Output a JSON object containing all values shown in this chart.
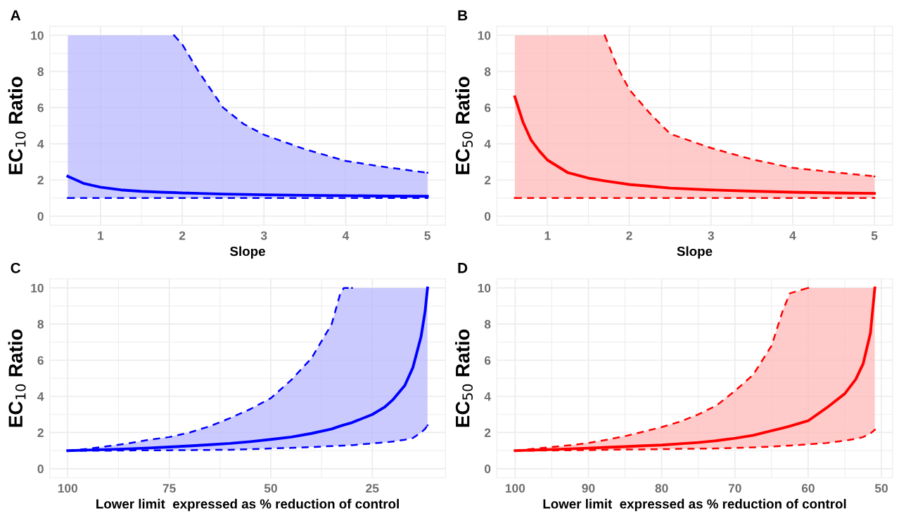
{
  "chart_data": [
    {
      "type": "line",
      "title": "A",
      "xlabel": "Slope",
      "ylabel": "EC$_{10}$ Ratio",
      "xlim": [
        0.38,
        5.22
      ],
      "xticks": [
        1,
        2,
        3,
        4,
        5
      ],
      "ylim": [
        -0.5,
        10.5
      ],
      "yticks": [
        0,
        2,
        4,
        6,
        8,
        10
      ],
      "grid": true,
      "marker": "none",
      "line_style": "solid",
      "x": [
        0.6,
        0.7,
        0.8,
        1,
        1.25,
        1.5,
        1.75,
        1.9,
        2,
        2.2,
        2.5,
        2.75,
        3,
        3.5,
        4,
        4.5,
        5
      ],
      "series": [
        {
          "color": "#0000ff",
          "values": [
            2.2,
            2.0,
            1.8,
            1.6,
            1.45,
            1.37,
            1.32,
            1.3,
            1.28,
            1.26,
            1.22,
            1.2,
            1.18,
            1.15,
            1.13,
            1.11,
            1.1
          ],
          "lower": [
            1,
            1,
            1,
            1,
            1,
            1,
            1,
            1,
            1,
            1,
            1,
            1,
            1,
            1,
            1,
            1,
            1
          ],
          "upper": [
            10,
            10,
            10,
            10,
            10,
            10,
            10,
            10,
            9.5,
            8.0,
            6.0,
            5.1,
            4.5,
            3.7,
            3.05,
            2.7,
            2.4
          ]
        },
        {
          "color": "#0000ff",
          "line_style": "dashed",
          "values": [
            1,
            1,
            1,
            1,
            1,
            1,
            1,
            1,
            1,
            1,
            1,
            1,
            1,
            1,
            1,
            1,
            1
          ]
        },
        {
          "color": "#0000ff",
          "line_style": "dashed",
          "values": [
            null,
            null,
            null,
            null,
            null,
            null,
            null,
            10,
            9.5,
            8.0,
            6.0,
            5.1,
            4.5,
            3.7,
            3.05,
            2.7,
            2.4
          ]
        }
      ]
    },
    {
      "type": "line",
      "title": "B",
      "xlabel": "Slope",
      "ylabel": "EC$_{50}$ Ratio",
      "xlim": [
        0.38,
        5.22
      ],
      "xticks": [
        1,
        2,
        3,
        4,
        5
      ],
      "ylim": [
        -0.5,
        10.5
      ],
      "yticks": [
        0,
        2,
        4,
        6,
        8,
        10
      ],
      "grid": true,
      "marker": "none",
      "line_style": "solid",
      "x": [
        0.6,
        0.7,
        0.8,
        0.9,
        1,
        1.25,
        1.5,
        1.7,
        1.85,
        2,
        2.25,
        2.5,
        3,
        3.5,
        4,
        4.5,
        5
      ],
      "series": [
        {
          "color": "#ff0000",
          "values": [
            6.6,
            5.2,
            4.2,
            3.6,
            3.1,
            2.4,
            2.1,
            1.95,
            1.85,
            1.75,
            1.65,
            1.55,
            1.45,
            1.38,
            1.32,
            1.28,
            1.26
          ],
          "lower": [
            1,
            1,
            1,
            1,
            1,
            1,
            1,
            1,
            1,
            1,
            1,
            1,
            1,
            1,
            1,
            1,
            1
          ],
          "upper": [
            10,
            10,
            10,
            10,
            10,
            10,
            10,
            10,
            8.3,
            7.0,
            5.7,
            4.55,
            3.77,
            3.14,
            2.67,
            2.43,
            2.2
          ]
        },
        {
          "color": "#ff0000",
          "line_style": "dashed",
          "values": [
            1,
            1,
            1,
            1,
            1,
            1,
            1,
            1,
            1,
            1,
            1,
            1,
            1,
            1,
            1,
            1,
            1
          ]
        },
        {
          "color": "#ff0000",
          "line_style": "dashed",
          "values": [
            null,
            null,
            null,
            null,
            null,
            null,
            null,
            10,
            8.3,
            7.0,
            5.7,
            4.55,
            3.77,
            3.14,
            2.67,
            2.43,
            2.2
          ]
        }
      ]
    },
    {
      "type": "line",
      "title": "C",
      "xlabel": "Lower limit  expressed as % reduction of control",
      "ylabel": "EC$_{10}$ Ratio",
      "xlim": [
        104.4,
        7.0
      ],
      "xticks": [
        100,
        75,
        50,
        25
      ],
      "ylim": [
        -0.5,
        10.5
      ],
      "yticks": [
        0,
        2,
        4,
        6,
        8,
        10
      ],
      "grid": true,
      "marker": "none",
      "line_style": "solid",
      "x": [
        100,
        95,
        90,
        85,
        80,
        75,
        70,
        65,
        60,
        55,
        50,
        45,
        40,
        35,
        33,
        32,
        30,
        25,
        22,
        20,
        17,
        15,
        13,
        12,
        11.4
      ],
      "series": [
        {
          "color": "#0000ff",
          "values": [
            1.0,
            1.03,
            1.06,
            1.1,
            1.15,
            1.2,
            1.26,
            1.33,
            1.4,
            1.5,
            1.62,
            1.75,
            1.95,
            2.2,
            2.35,
            2.42,
            2.55,
            3.0,
            3.4,
            3.8,
            4.6,
            5.6,
            7.3,
            8.7,
            10
          ],
          "lower": [
            1.0,
            1.0,
            1.0,
            1.01,
            1.02,
            1.02,
            1.03,
            1.04,
            1.05,
            1.08,
            1.12,
            1.15,
            1.2,
            1.25,
            1.27,
            1.28,
            1.3,
            1.4,
            1.45,
            1.5,
            1.6,
            1.7,
            2.0,
            2.2,
            2.4
          ],
          "upper": [
            1.0,
            1.1,
            1.25,
            1.4,
            1.6,
            1.75,
            2.0,
            2.35,
            2.8,
            3.3,
            3.9,
            4.9,
            6.1,
            8.0,
            9.6,
            10,
            10,
            10,
            10,
            10,
            10,
            10,
            10,
            10,
            10
          ]
        },
        {
          "color": "#0000ff",
          "line_style": "dashed",
          "values": [
            1.0,
            1.0,
            1.0,
            1.01,
            1.02,
            1.02,
            1.03,
            1.04,
            1.05,
            1.08,
            1.12,
            1.15,
            1.2,
            1.25,
            1.27,
            1.28,
            1.3,
            1.4,
            1.45,
            1.5,
            1.6,
            1.7,
            2.0,
            2.2,
            2.4
          ]
        },
        {
          "color": "#0000ff",
          "line_style": "dashed",
          "values": [
            1.0,
            1.1,
            1.25,
            1.4,
            1.6,
            1.75,
            2.0,
            2.35,
            2.8,
            3.3,
            3.9,
            4.9,
            6.1,
            8.0,
            9.6,
            10,
            10,
            null,
            null,
            null,
            null,
            null,
            null,
            null,
            null
          ]
        }
      ]
    },
    {
      "type": "line",
      "title": "D",
      "xlabel": "Lower limit  expressed as % reduction of control",
      "ylabel": "EC$_{50}$ Ratio",
      "xlim": [
        102.5,
        48.5
      ],
      "xticks": [
        100,
        90,
        80,
        70,
        60,
        50
      ],
      "ylim": [
        -0.5,
        10.5
      ],
      "yticks": [
        0,
        2,
        4,
        6,
        8,
        10
      ],
      "grid": true,
      "marker": "none",
      "line_style": "solid",
      "x": [
        100,
        97.5,
        95,
        92.5,
        90,
        87.5,
        85,
        82.5,
        80,
        77.5,
        75,
        72.5,
        70,
        67.5,
        65,
        63.5,
        62.5,
        60,
        57.5,
        55,
        53.5,
        52.5,
        51.5,
        50.9
      ],
      "series": [
        {
          "color": "#ff0000",
          "values": [
            1.0,
            1.03,
            1.06,
            1.1,
            1.14,
            1.18,
            1.22,
            1.27,
            1.31,
            1.38,
            1.45,
            1.55,
            1.68,
            1.85,
            2.1,
            2.25,
            2.35,
            2.65,
            3.36,
            4.15,
            4.95,
            5.8,
            7.5,
            10
          ],
          "lower": [
            1.0,
            1.0,
            1.01,
            1.02,
            1.03,
            1.05,
            1.06,
            1.07,
            1.08,
            1.1,
            1.11,
            1.12,
            1.15,
            1.18,
            1.22,
            1.26,
            1.28,
            1.35,
            1.42,
            1.55,
            1.65,
            1.75,
            1.95,
            2.15
          ],
          "upper": [
            1.0,
            1.1,
            1.2,
            1.3,
            1.42,
            1.6,
            1.8,
            2.05,
            2.3,
            2.6,
            3.0,
            3.5,
            4.3,
            5.2,
            6.8,
            8.7,
            9.7,
            10,
            10,
            10,
            10,
            10,
            10,
            10
          ]
        },
        {
          "color": "#ff0000",
          "line_style": "dashed",
          "values": [
            1.0,
            1.0,
            1.01,
            1.02,
            1.03,
            1.05,
            1.06,
            1.07,
            1.08,
            1.1,
            1.11,
            1.12,
            1.15,
            1.18,
            1.22,
            1.26,
            1.28,
            1.35,
            1.42,
            1.55,
            1.65,
            1.75,
            1.95,
            2.15
          ]
        },
        {
          "color": "#ff0000",
          "line_style": "dashed",
          "values": [
            1.0,
            1.1,
            1.2,
            1.3,
            1.42,
            1.6,
            1.8,
            2.05,
            2.3,
            2.6,
            3.0,
            3.5,
            4.3,
            5.2,
            6.8,
            8.7,
            9.7,
            10,
            null,
            null,
            null,
            null,
            null,
            null
          ]
        }
      ]
    }
  ]
}
